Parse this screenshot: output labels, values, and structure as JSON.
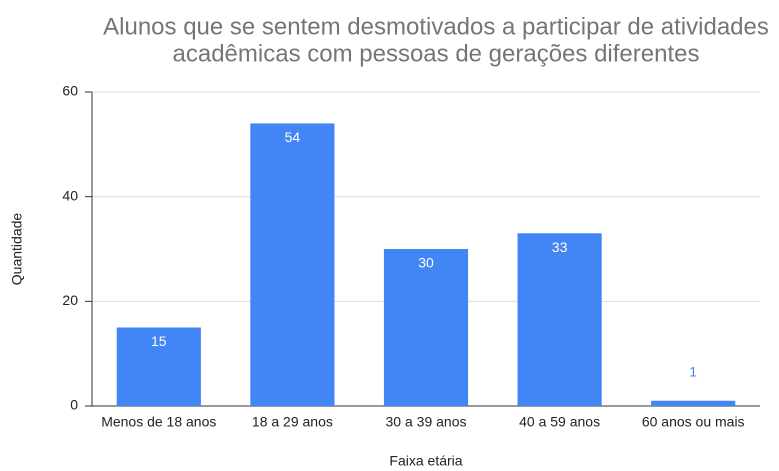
{
  "chart_data": {
    "type": "bar",
    "title": [
      "Alunos que se sentem desmotivados a participar de atividades",
      "acadêmicas com pessoas de gerações diferentes"
    ],
    "x_label": "Faixa etária",
    "y_label": "Quantidade",
    "categories": [
      "Menos de 18 anos",
      "18 a 29 anos",
      "30 a 39 anos",
      "40 a 59 anos",
      "60 anos ou mais"
    ],
    "values": [
      15,
      54,
      30,
      33,
      1
    ],
    "color": "#4285f4",
    "ylim": [
      0,
      60
    ],
    "yticks": [
      0,
      20,
      40,
      60
    ],
    "grid": true
  }
}
